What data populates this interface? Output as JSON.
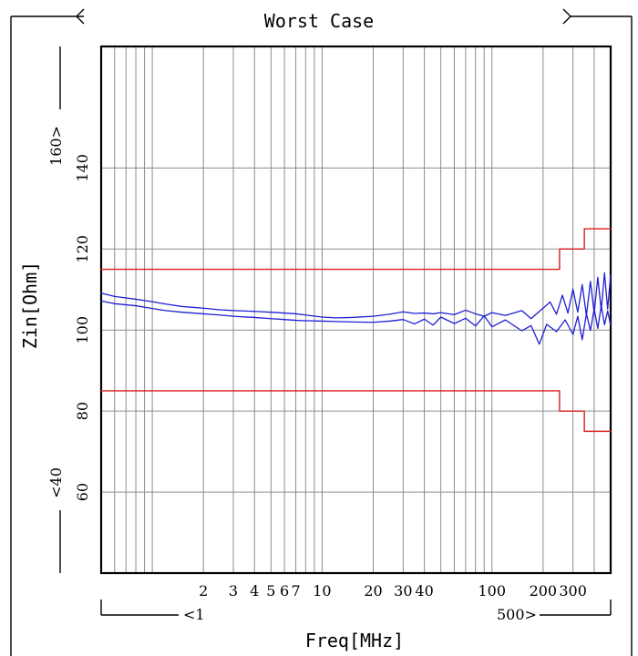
{
  "colors": {
    "trace": "#1f1fd6",
    "limit": "#d91c1c",
    "grid": "#8c8c8c",
    "frame": "#000000",
    "text": "#000000"
  },
  "chart_data": {
    "type": "line",
    "title": "Worst Case",
    "xlabel": "Freq[MHz]",
    "ylabel": "Zin[Ohm]",
    "x_scale": "log",
    "xlim": [
      0.5,
      500
    ],
    "ylim": [
      40,
      170
    ],
    "x_ticks": [
      2,
      3,
      4,
      5,
      6,
      7,
      10,
      20,
      30,
      40,
      100,
      200,
      300
    ],
    "x_tick_labels": [
      "2",
      "3",
      "4",
      "5",
      "6",
      "7",
      "10",
      "20",
      "30",
      "40",
      "100",
      "200",
      "300"
    ],
    "y_ticks": [
      60,
      80,
      100,
      120,
      140
    ],
    "y_tick_labels": [
      "60",
      "80",
      "100",
      "120",
      "140"
    ],
    "range_markers": {
      "x_min_label": "<1",
      "x_max_label": "500>",
      "y_min_label": "<40",
      "y_max_label": "160>"
    },
    "grid": true,
    "legend": "none",
    "series": [
      {
        "points": [
          [
            0.5,
            109.1
          ],
          [
            0.6,
            108.3
          ],
          [
            0.8,
            107.6
          ],
          [
            1,
            107.0
          ],
          [
            1.2,
            106.4
          ],
          [
            1.5,
            105.8
          ],
          [
            2,
            105.4
          ],
          [
            2.5,
            105.0
          ],
          [
            3,
            104.8
          ],
          [
            4,
            104.6
          ],
          [
            5,
            104.4
          ],
          [
            6,
            104.2
          ],
          [
            7,
            104.0
          ],
          [
            8,
            103.7
          ],
          [
            10,
            103.2
          ],
          [
            12,
            103.0
          ],
          [
            15,
            103.1
          ],
          [
            20,
            103.4
          ],
          [
            25,
            103.9
          ],
          [
            30,
            104.5
          ],
          [
            35,
            104.1
          ],
          [
            40,
            104.2
          ],
          [
            45,
            104.0
          ],
          [
            50,
            104.3
          ],
          [
            60,
            103.8
          ],
          [
            70,
            104.9
          ],
          [
            80,
            104.0
          ],
          [
            90,
            103.4
          ],
          [
            100,
            104.3
          ],
          [
            120,
            103.6
          ],
          [
            150,
            104.8
          ],
          [
            170,
            102.8
          ],
          [
            200,
            105.4
          ],
          [
            220,
            106.9
          ],
          [
            240,
            103.9
          ],
          [
            260,
            108.6
          ],
          [
            280,
            104.2
          ],
          [
            300,
            110.1
          ],
          [
            320,
            104.4
          ],
          [
            340,
            111.2
          ],
          [
            360,
            103.6
          ],
          [
            380,
            112.0
          ],
          [
            400,
            104.2
          ],
          [
            420,
            113.0
          ],
          [
            440,
            104.9
          ],
          [
            460,
            114.1
          ],
          [
            480,
            105.2
          ],
          [
            500,
            113.6
          ]
        ]
      },
      {
        "points": [
          [
            0.5,
            107.2
          ],
          [
            0.6,
            106.5
          ],
          [
            0.8,
            106.0
          ],
          [
            1,
            105.3
          ],
          [
            1.2,
            104.8
          ],
          [
            1.5,
            104.4
          ],
          [
            2,
            104.0
          ],
          [
            2.5,
            103.7
          ],
          [
            3,
            103.4
          ],
          [
            4,
            103.1
          ],
          [
            5,
            102.8
          ],
          [
            6,
            102.6
          ],
          [
            7,
            102.4
          ],
          [
            8,
            102.3
          ],
          [
            10,
            102.2
          ],
          [
            12,
            102.1
          ],
          [
            15,
            102.0
          ],
          [
            20,
            101.9
          ],
          [
            25,
            102.2
          ],
          [
            30,
            102.6
          ],
          [
            35,
            101.5
          ],
          [
            40,
            102.7
          ],
          [
            45,
            101.2
          ],
          [
            50,
            103.2
          ],
          [
            60,
            101.6
          ],
          [
            70,
            102.9
          ],
          [
            80,
            101.0
          ],
          [
            90,
            103.5
          ],
          [
            100,
            100.8
          ],
          [
            120,
            102.5
          ],
          [
            150,
            99.8
          ],
          [
            170,
            101.1
          ],
          [
            190,
            96.5
          ],
          [
            210,
            101.4
          ],
          [
            240,
            99.6
          ],
          [
            270,
            102.5
          ],
          [
            300,
            98.9
          ],
          [
            320,
            103.4
          ],
          [
            340,
            97.6
          ],
          [
            360,
            104.0
          ],
          [
            380,
            99.9
          ],
          [
            400,
            105.2
          ],
          [
            420,
            100.4
          ],
          [
            440,
            106.0
          ],
          [
            460,
            101.3
          ],
          [
            480,
            104.7
          ],
          [
            500,
            101.2
          ]
        ]
      },
      {
        "points": [
          [
            0.5,
            115
          ],
          [
            250,
            115
          ],
          [
            250,
            120
          ],
          [
            350,
            120
          ],
          [
            350,
            125
          ],
          [
            500,
            125
          ]
        ]
      },
      {
        "points": [
          [
            0.5,
            85
          ],
          [
            250,
            85
          ],
          [
            250,
            80
          ],
          [
            350,
            80
          ],
          [
            350,
            75
          ],
          [
            500,
            75
          ]
        ]
      }
    ]
  }
}
